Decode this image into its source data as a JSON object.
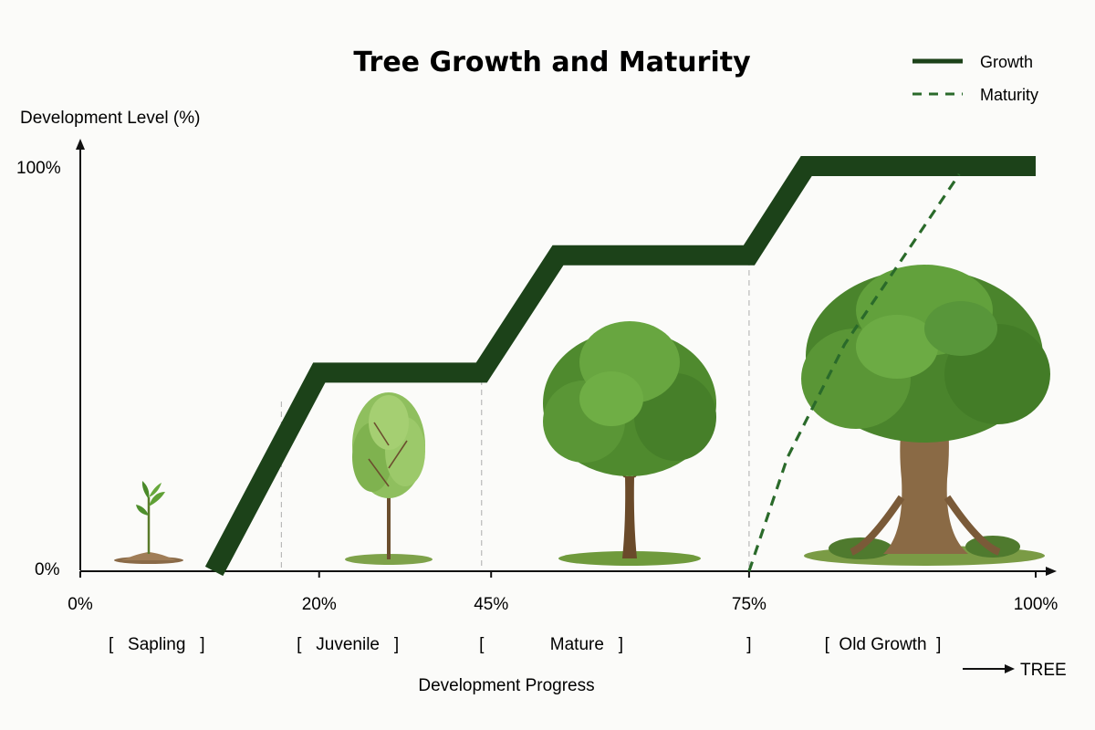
{
  "chart_data": {
    "type": "line",
    "title": "Tree Growth and Maturity",
    "xlabel": "Development Progress",
    "ylabel": "Development Level (%)",
    "xlim": [
      0,
      100
    ],
    "ylim": [
      0,
      100
    ],
    "x_ticks": [
      "0%",
      "20%",
      "45%",
      "75%",
      "100%"
    ],
    "y_ticks": [
      "0%",
      "100%"
    ],
    "legend_position": "top-right",
    "series": [
      {
        "name": "Growth",
        "style": "solid",
        "color": "#1c4219",
        "points": [
          [
            14,
            0
          ],
          [
            25,
            49
          ],
          [
            42,
            49
          ],
          [
            50,
            78
          ],
          [
            70,
            78
          ],
          [
            76,
            100
          ],
          [
            100,
            100
          ]
        ]
      },
      {
        "name": "Maturity",
        "style": "dashed",
        "color": "#2a6a2a",
        "points": [
          [
            70,
            0
          ],
          [
            74,
            28
          ],
          [
            80,
            56
          ],
          [
            88,
            84
          ],
          [
            92,
            98
          ]
        ]
      }
    ],
    "stage_brackets": [
      {
        "text": "[   Sapling   ]",
        "x": 8
      },
      {
        "text": "[   Juvenile   ]",
        "x": 28
      },
      {
        "text": "[",
        "x": 42
      },
      {
        "text": "Mature   ]",
        "x": 53
      },
      {
        "text": "]",
        "x": 70
      },
      {
        "text": "[  Old Growth  ]",
        "x": 84
      }
    ],
    "stage_dividers": [
      20,
      42,
      70
    ],
    "illustrations": [
      {
        "icon": "sapling-icon",
        "x": 6
      },
      {
        "icon": "juvenile-tree-icon",
        "x": 27
      },
      {
        "icon": "mature-tree-icon",
        "x": 48
      },
      {
        "icon": "old-growth-tree-icon",
        "x": 81
      }
    ],
    "arrow_label": "TREE"
  }
}
